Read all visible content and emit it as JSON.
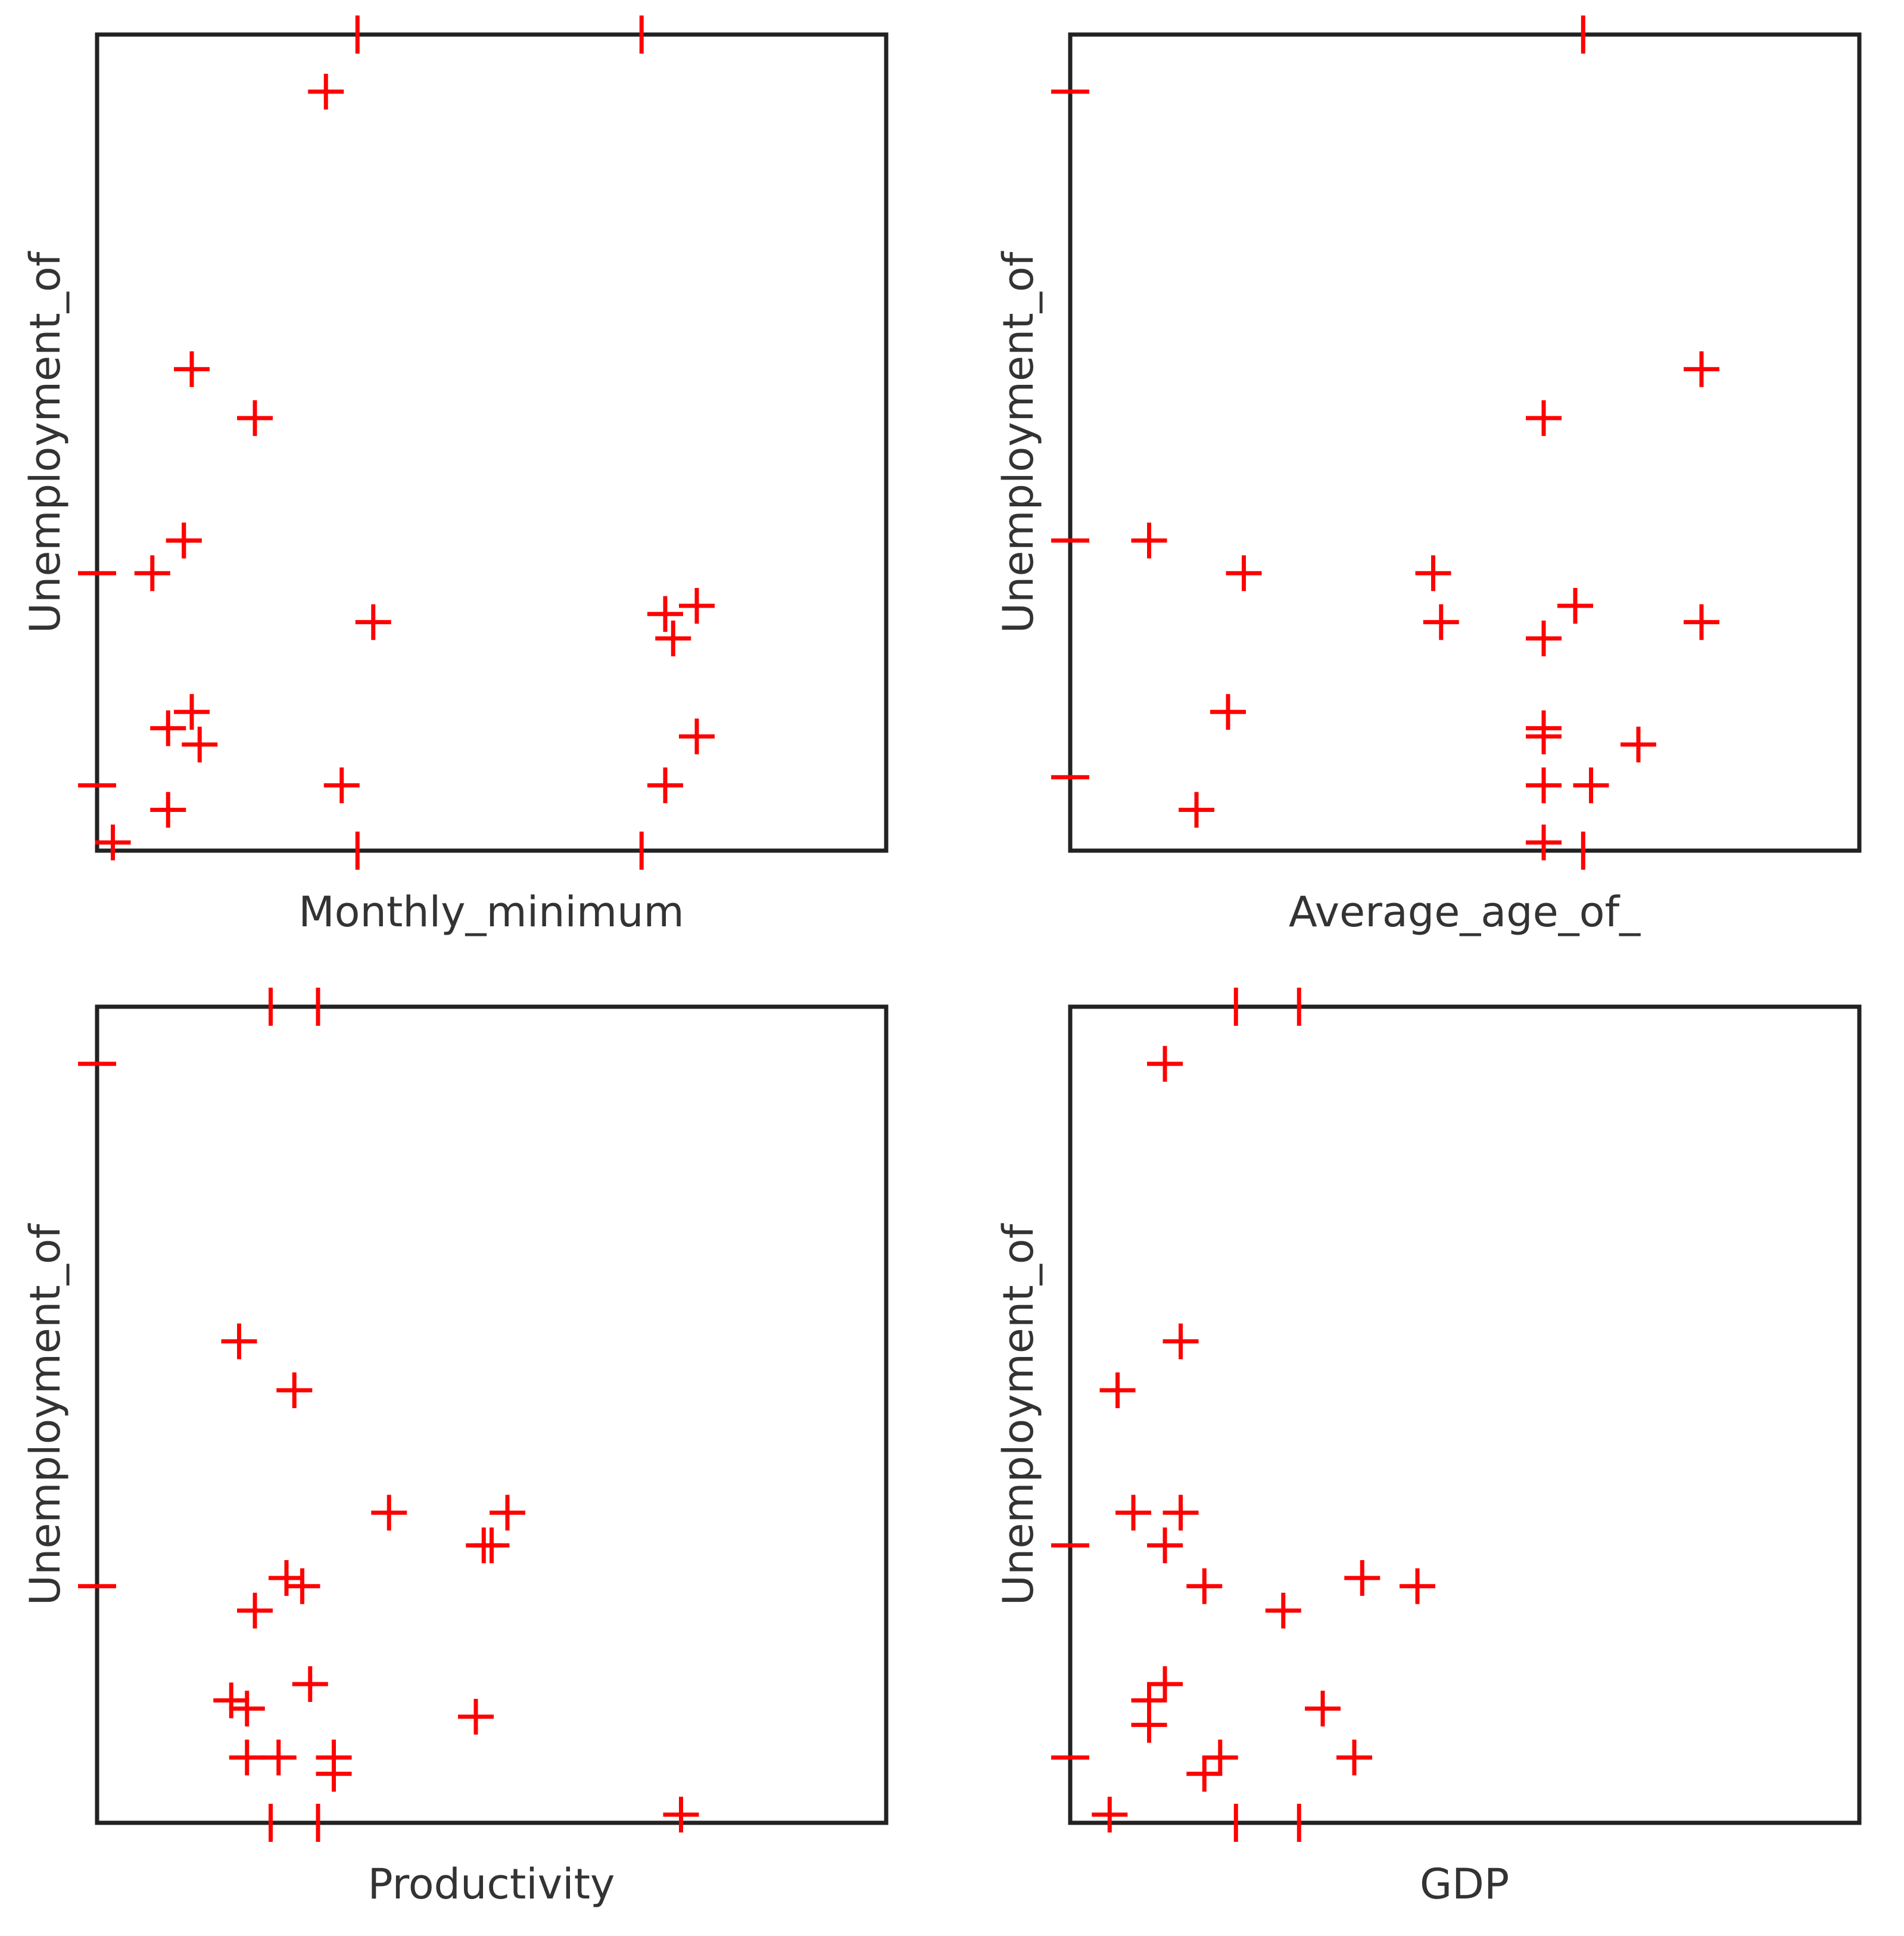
{
  "colors": {
    "marker": "#ff0000",
    "frame": "#222222",
    "text": "#333333"
  },
  "chart_data": [
    {
      "type": "scatter",
      "title": "",
      "xlabel": "Monthly_minimum",
      "ylabel": "Unemployment_of",
      "xlim": [
        0,
        100
      ],
      "ylim": [
        0,
        100
      ],
      "grid": false,
      "marker": "plus",
      "x": [
        29,
        12,
        20,
        11,
        7,
        11,
        35,
        76,
        72,
        73,
        9,
        12,
        13,
        76,
        31,
        72,
        9,
        2
      ],
      "y": [
        93,
        59,
        53,
        38,
        34,
        38,
        28,
        30,
        29,
        26,
        15,
        17,
        13,
        14,
        8,
        8,
        5,
        1
      ],
      "margin_ticks": {
        "x": [
          33,
          69
        ],
        "y": [
          34,
          8
        ]
      }
    },
    {
      "type": "scatter",
      "title": "",
      "xlabel": "Average_age_of_",
      "ylabel": "Unemployment_of",
      "xlim": [
        0,
        100
      ],
      "ylim": [
        0,
        100
      ],
      "grid": false,
      "marker": "plus",
      "x": [
        80,
        60,
        10,
        22,
        46,
        47,
        64,
        80,
        60,
        20,
        60,
        60,
        72,
        60,
        66,
        16,
        60
      ],
      "y": [
        59,
        53,
        38,
        34,
        34,
        28,
        30,
        28,
        26,
        17,
        15,
        14,
        13,
        8,
        8,
        5,
        1
      ],
      "margin_ticks": {
        "x": [
          65
        ],
        "y": [
          93,
          38,
          9
        ]
      }
    },
    {
      "type": "scatter",
      "title": "",
      "xlabel": "Productivity",
      "ylabel": "Unemployment_of",
      "xlim": [
        0,
        100
      ],
      "ylim": [
        0,
        100
      ],
      "grid": false,
      "marker": "plus",
      "x": [
        18,
        25,
        37,
        52,
        50,
        49,
        24,
        26,
        20,
        27,
        17,
        19,
        48,
        19,
        23,
        30,
        30,
        74
      ],
      "y": [
        59,
        53,
        38,
        38,
        34,
        34,
        30,
        29,
        26,
        17,
        15,
        14,
        13,
        8,
        8,
        8,
        6,
        1
      ],
      "margin_ticks": {
        "x": [
          28,
          22
        ],
        "y": [
          93,
          29
        ]
      }
    },
    {
      "type": "scatter",
      "title": "",
      "xlabel": "GDP",
      "ylabel": "Unemployment_of",
      "xlim": [
        0,
        100
      ],
      "ylim": [
        0,
        100
      ],
      "grid": false,
      "marker": "plus",
      "x": [
        12,
        14,
        6,
        8,
        14,
        12,
        17,
        27,
        37,
        44,
        12,
        32,
        10,
        10,
        36,
        19,
        17,
        5
      ],
      "y": [
        93,
        59,
        53,
        38,
        38,
        34,
        29,
        26,
        30,
        29,
        17,
        14,
        15,
        12,
        8,
        8,
        6,
        1
      ],
      "margin_ticks": {
        "x": [
          21,
          29
        ],
        "y": [
          34,
          8
        ]
      }
    }
  ]
}
